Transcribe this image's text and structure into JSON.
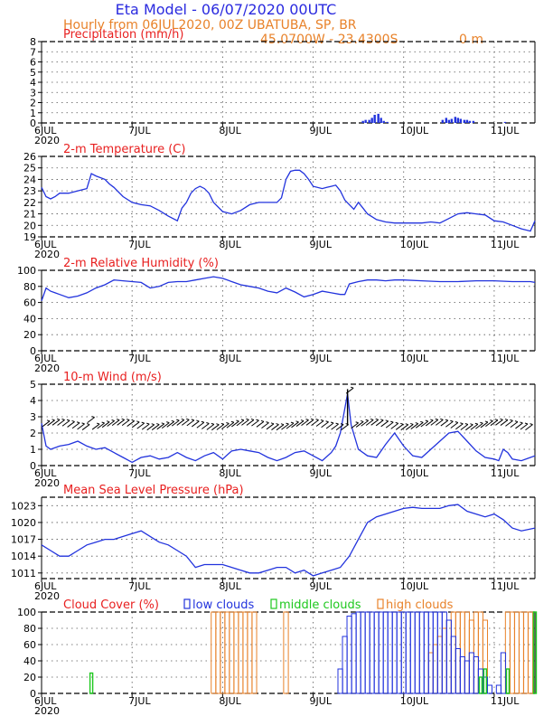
{
  "header": {
    "title": "Eta Model - 06/07/2020 00UTC",
    "subtitle": "Hourly from 06JUL2020, 00Z  UBATUBA, SP, BR",
    "coords": "45.0700W - 23.4300S",
    "elevation": "0  m"
  },
  "colors": {
    "blue": "#2233dd",
    "red": "#e82020",
    "orange": "#e8822a",
    "green": "#1ec81e",
    "title_blue": "#2a2adf",
    "black": "#000000",
    "orange_fill": "#f2b27a"
  },
  "x_axis": {
    "labels": [
      "6JUL",
      "7JUL",
      "8JUL",
      "9JUL",
      "10JUL",
      "11JUL"
    ],
    "year": "2020",
    "label_days": [
      0,
      1,
      2,
      3,
      4,
      5
    ],
    "range_days": [
      0,
      5.45
    ]
  },
  "chart_data": [
    {
      "id": "precip",
      "type": "bar",
      "title": "Precipitation (mm/h)",
      "ylim": [
        0,
        8
      ],
      "yticks": [
        0,
        1,
        2,
        3,
        4,
        5,
        6,
        7,
        8
      ],
      "x_days": [
        3.55,
        3.58,
        3.62,
        3.65,
        3.68,
        3.72,
        3.75,
        3.78,
        3.82,
        4.43,
        4.47,
        4.5,
        4.53,
        4.57,
        4.6,
        4.63,
        4.67,
        4.7,
        4.73,
        4.77,
        5.12
      ],
      "values": [
        0.2,
        0.3,
        0.3,
        0.5,
        0.8,
        0.9,
        0.5,
        0.2,
        0.1,
        0.3,
        0.5,
        0.3,
        0.4,
        0.6,
        0.5,
        0.4,
        0.3,
        0.3,
        0.2,
        0.2,
        0.1
      ]
    },
    {
      "id": "temperature",
      "type": "line",
      "title": "2-m Temperature (C)",
      "ylim": [
        19,
        26
      ],
      "yticks": [
        19,
        20,
        21,
        22,
        23,
        24,
        25,
        26
      ],
      "x_days": [
        0,
        0.05,
        0.1,
        0.15,
        0.2,
        0.3,
        0.4,
        0.5,
        0.55,
        0.6,
        0.7,
        0.75,
        0.8,
        0.9,
        1.0,
        1.1,
        1.2,
        1.3,
        1.4,
        1.5,
        1.55,
        1.6,
        1.65,
        1.7,
        1.75,
        1.8,
        1.85,
        1.9,
        2.0,
        2.1,
        2.2,
        2.3,
        2.4,
        2.5,
        2.6,
        2.65,
        2.7,
        2.75,
        2.8,
        2.85,
        2.9,
        2.95,
        3.0,
        3.1,
        3.15,
        3.2,
        3.25,
        3.3,
        3.35,
        3.4,
        3.45,
        3.5,
        3.55,
        3.6,
        3.7,
        3.8,
        3.9,
        4.0,
        4.1,
        4.2,
        4.3,
        4.4,
        4.5,
        4.6,
        4.7,
        4.8,
        4.9,
        5.0,
        5.1,
        5.2,
        5.3,
        5.4,
        5.45
      ],
      "values": [
        23.3,
        22.5,
        22.3,
        22.5,
        22.8,
        22.8,
        23.0,
        23.2,
        24.5,
        24.3,
        24.0,
        23.6,
        23.3,
        22.5,
        22.0,
        21.8,
        21.7,
        21.3,
        20.8,
        20.4,
        21.5,
        22.0,
        22.8,
        23.2,
        23.4,
        23.2,
        22.8,
        22.0,
        21.2,
        21.0,
        21.3,
        21.8,
        22.0,
        22.0,
        22.0,
        22.4,
        24.0,
        24.7,
        24.8,
        24.8,
        24.5,
        24.0,
        23.4,
        23.2,
        23.3,
        23.4,
        23.5,
        23.0,
        22.2,
        21.8,
        21.4,
        22.0,
        21.5,
        21.0,
        20.5,
        20.3,
        20.2,
        20.2,
        20.2,
        20.2,
        20.3,
        20.2,
        20.6,
        21.0,
        21.1,
        21.0,
        20.9,
        20.4,
        20.3,
        20.0,
        19.7,
        19.5,
        20.4
      ]
    },
    {
      "id": "humidity",
      "type": "line",
      "title": "2-m Relative Humidity (%)",
      "ylim": [
        0,
        100
      ],
      "yticks": [
        0,
        20,
        40,
        60,
        80,
        100
      ],
      "x_days": [
        0,
        0.05,
        0.1,
        0.15,
        0.2,
        0.3,
        0.4,
        0.5,
        0.6,
        0.7,
        0.8,
        0.9,
        1.0,
        1.1,
        1.2,
        1.3,
        1.4,
        1.5,
        1.6,
        1.7,
        1.8,
        1.9,
        2.0,
        2.1,
        2.2,
        2.3,
        2.4,
        2.5,
        2.6,
        2.7,
        2.8,
        2.9,
        3.0,
        3.1,
        3.2,
        3.3,
        3.35,
        3.38,
        3.4,
        3.5,
        3.6,
        3.7,
        3.8,
        3.9,
        4.0,
        4.2,
        4.4,
        4.6,
        4.8,
        5.0,
        5.2,
        5.4,
        5.45
      ],
      "values": [
        62,
        78,
        74,
        72,
        70,
        66,
        68,
        72,
        78,
        82,
        88,
        87,
        86,
        85,
        78,
        80,
        85,
        86,
        86,
        88,
        90,
        92,
        90,
        86,
        82,
        80,
        78,
        74,
        72,
        78,
        73,
        67,
        70,
        74,
        72,
        70,
        70,
        78,
        83,
        86,
        88,
        88,
        87,
        88,
        88,
        87,
        86,
        86,
        87,
        87,
        86,
        86,
        85
      ]
    },
    {
      "id": "wind",
      "type": "line",
      "title": "10-m Wind (m/s)",
      "ylim": [
        0,
        5
      ],
      "yticks": [
        0,
        1,
        2,
        3,
        4,
        5
      ],
      "x_days": [
        0,
        0.05,
        0.1,
        0.2,
        0.3,
        0.4,
        0.5,
        0.6,
        0.7,
        0.8,
        0.9,
        1.0,
        1.1,
        1.2,
        1.3,
        1.4,
        1.5,
        1.6,
        1.7,
        1.8,
        1.9,
        2.0,
        2.1,
        2.2,
        2.3,
        2.4,
        2.5,
        2.6,
        2.7,
        2.8,
        2.9,
        3.0,
        3.1,
        3.2,
        3.25,
        3.3,
        3.35,
        3.38,
        3.42,
        3.5,
        3.6,
        3.7,
        3.8,
        3.9,
        4.0,
        4.1,
        4.2,
        4.3,
        4.4,
        4.5,
        4.6,
        4.7,
        4.8,
        4.9,
        5.0,
        5.05,
        5.1,
        5.15,
        5.2,
        5.3,
        5.4,
        5.45
      ],
      "values": [
        2.6,
        1.2,
        1.0,
        1.2,
        1.3,
        1.5,
        1.2,
        1.0,
        1.1,
        0.8,
        0.5,
        0.2,
        0.5,
        0.6,
        0.4,
        0.5,
        0.8,
        0.5,
        0.3,
        0.6,
        0.8,
        0.4,
        0.9,
        1.0,
        0.9,
        0.8,
        0.5,
        0.3,
        0.5,
        0.8,
        0.9,
        0.6,
        0.3,
        0.8,
        1.2,
        2.0,
        3.5,
        4.4,
        2.5,
        1.0,
        0.6,
        0.5,
        1.3,
        2.0,
        1.2,
        0.6,
        0.5,
        1.0,
        1.5,
        2.0,
        2.1,
        1.5,
        0.9,
        0.5,
        0.4,
        0.3,
        1.0,
        0.8,
        0.4,
        0.3,
        0.5,
        0.6
      ],
      "arrows_note": "wind barbs along 2.5 m/s"
    },
    {
      "id": "pressure",
      "type": "line",
      "title": "Mean Sea Level Pressure (hPa)",
      "ylim": [
        1010,
        1024.5
      ],
      "yticks": [
        1011,
        1014,
        1017,
        1020,
        1023
      ],
      "x_days": [
        0,
        0.1,
        0.2,
        0.3,
        0.4,
        0.5,
        0.6,
        0.7,
        0.8,
        0.9,
        1.0,
        1.1,
        1.2,
        1.3,
        1.4,
        1.5,
        1.6,
        1.7,
        1.8,
        1.9,
        2.0,
        2.1,
        2.2,
        2.3,
        2.4,
        2.5,
        2.6,
        2.7,
        2.8,
        2.9,
        3.0,
        3.1,
        3.2,
        3.3,
        3.4,
        3.5,
        3.6,
        3.7,
        3.8,
        3.9,
        4.0,
        4.1,
        4.2,
        4.3,
        4.4,
        4.5,
        4.6,
        4.7,
        4.8,
        4.9,
        5.0,
        5.1,
        5.2,
        5.3,
        5.45
      ],
      "values": [
        1016,
        1015,
        1014,
        1014,
        1015,
        1016,
        1016.5,
        1017,
        1017,
        1017.5,
        1018,
        1018.5,
        1017.5,
        1016.5,
        1016,
        1015,
        1014,
        1012,
        1012.5,
        1012.5,
        1012.5,
        1012,
        1011.5,
        1011,
        1011,
        1011.5,
        1012,
        1012,
        1011,
        1011.5,
        1010.5,
        1011,
        1011.5,
        1012,
        1014,
        1017,
        1020,
        1021,
        1021.5,
        1022,
        1022.5,
        1022.7,
        1022.5,
        1022.5,
        1022.5,
        1023,
        1023.2,
        1022,
        1021.5,
        1021,
        1021.5,
        1020.5,
        1019,
        1018.5,
        1019
      ]
    },
    {
      "id": "clouds",
      "type": "bar",
      "title": "Cloud Cover (%)",
      "legend": [
        "low clouds",
        "middle clouds",
        "high clouds"
      ],
      "ylim": [
        0,
        100
      ],
      "yticks": [
        0,
        20,
        40,
        60,
        80,
        100
      ],
      "low": {
        "x_days": [
          3.3,
          3.35,
          3.4,
          3.45,
          3.5,
          3.55,
          3.6,
          3.65,
          3.7,
          3.75,
          3.8,
          3.85,
          3.9,
          3.95,
          4.0,
          4.05,
          4.1,
          4.15,
          4.2,
          4.25,
          4.3,
          4.35,
          4.4,
          4.45,
          4.5,
          4.55,
          4.6,
          4.65,
          4.7,
          4.75,
          4.8,
          4.85,
          4.9,
          4.95,
          5.0,
          5.05,
          5.1
        ],
        "values": [
          30,
          70,
          95,
          98,
          100,
          100,
          100,
          100,
          100,
          100,
          100,
          100,
          100,
          100,
          100,
          100,
          100,
          100,
          100,
          100,
          100,
          100,
          100,
          100,
          90,
          70,
          55,
          45,
          40,
          50,
          45,
          30,
          20,
          10,
          0,
          10,
          50
        ]
      },
      "middle": {
        "x_days": [
          0.55,
          4.85,
          4.9,
          5.15,
          5.45
        ],
        "values": [
          25,
          20,
          30,
          30,
          100
        ]
      },
      "high": {
        "x_days": [
          1.9,
          1.95,
          2.0,
          2.05,
          2.1,
          2.15,
          2.2,
          2.25,
          2.3,
          2.35,
          2.7,
          4.3,
          4.35,
          4.4,
          4.45,
          4.5,
          4.55,
          4.6,
          4.65,
          4.7,
          4.75,
          4.8,
          4.85,
          4.9,
          5.15,
          5.2,
          5.25,
          5.3,
          5.35,
          5.4
        ],
        "values": [
          100,
          100,
          100,
          100,
          100,
          100,
          100,
          100,
          100,
          100,
          100,
          50,
          60,
          70,
          80,
          90,
          100,
          100,
          100,
          100,
          90,
          100,
          100,
          90,
          100,
          100,
          100,
          100,
          100,
          100
        ]
      }
    }
  ]
}
